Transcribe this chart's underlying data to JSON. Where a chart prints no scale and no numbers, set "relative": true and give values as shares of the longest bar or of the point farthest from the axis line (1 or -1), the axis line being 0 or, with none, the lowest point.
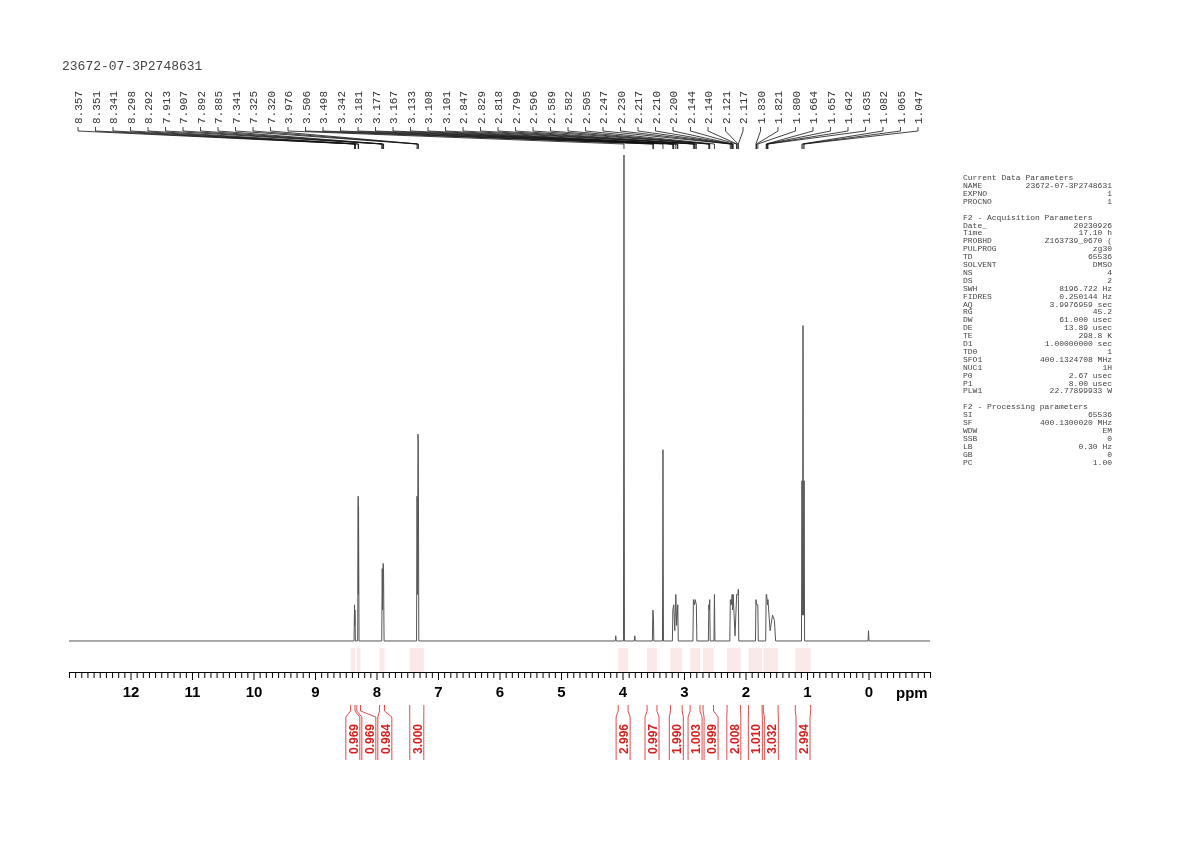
{
  "chart_data": {
    "type": "line",
    "relative": true,
    "title": "23672-07-3P2748631",
    "xlabel": "ppm",
    "xlim": [
      13,
      -1
    ],
    "color": "#555555",
    "line_style": "solid",
    "marker": "none",
    "xticks": [
      {
        "value": 13,
        "label": null
      },
      {
        "value": 12.9,
        "label": null
      },
      {
        "value": 12.8,
        "label": null
      },
      {
        "value": 12.7,
        "label": null
      },
      {
        "value": 12.6,
        "label": null
      },
      {
        "value": 12.5,
        "label": null
      },
      {
        "value": 12.4,
        "label": null
      },
      {
        "value": 12.3,
        "label": null
      },
      {
        "value": 12.2,
        "label": null
      },
      {
        "value": 12.1,
        "label": null
      },
      12,
      {
        "value": 11.9,
        "label": null
      },
      {
        "value": 11.8,
        "label": null
      },
      {
        "value": 11.7,
        "label": null
      },
      {
        "value": 11.6,
        "label": null
      },
      {
        "value": 11.5,
        "label": null
      },
      {
        "value": 11.4,
        "label": null
      },
      {
        "value": 11.3,
        "label": null
      },
      {
        "value": 11.2,
        "label": null
      },
      {
        "value": 11.1,
        "label": null
      },
      11,
      {
        "value": 10.9,
        "label": null
      },
      {
        "value": 10.8,
        "label": null
      },
      {
        "value": 10.7,
        "label": null
      },
      {
        "value": 10.6,
        "label": null
      },
      {
        "value": 10.5,
        "label": null
      },
      {
        "value": 10.4,
        "label": null
      },
      {
        "value": 10.3,
        "label": null
      },
      {
        "value": 10.2,
        "label": null
      },
      {
        "value": 10.1,
        "label": null
      },
      10,
      {
        "value": 9.9,
        "label": null
      },
      {
        "value": 9.8,
        "label": null
      },
      {
        "value": 9.7,
        "label": null
      },
      {
        "value": 9.6,
        "label": null
      },
      {
        "value": 9.5,
        "label": null
      },
      {
        "value": 9.4,
        "label": null
      },
      {
        "value": 9.3,
        "label": null
      },
      {
        "value": 9.2,
        "label": null
      },
      {
        "value": 9.1,
        "label": null
      },
      9,
      {
        "value": 8.9,
        "label": null
      },
      {
        "value": 8.8,
        "label": null
      },
      {
        "value": 8.7,
        "label": null
      },
      {
        "value": 8.6,
        "label": null
      },
      {
        "value": 8.5,
        "label": null
      },
      {
        "value": 8.4,
        "label": null
      },
      {
        "value": 8.3,
        "label": null
      },
      {
        "value": 8.2,
        "label": null
      },
      {
        "value": 8.1,
        "label": null
      },
      8,
      {
        "value": 7.9,
        "label": null
      },
      {
        "value": 7.8,
        "label": null
      },
      {
        "value": 7.7,
        "label": null
      },
      {
        "value": 7.6,
        "label": null
      },
      {
        "value": 7.5,
        "label": null
      },
      {
        "value": 7.4,
        "label": null
      },
      {
        "value": 7.3,
        "label": null
      },
      {
        "value": 7.2,
        "label": null
      },
      {
        "value": 7.1,
        "label": null
      },
      7,
      {
        "value": 6.9,
        "label": null
      },
      {
        "value": 6.8,
        "label": null
      },
      {
        "value": 6.7,
        "label": null
      },
      {
        "value": 6.6,
        "label": null
      },
      {
        "value": 6.5,
        "label": null
      },
      {
        "value": 6.4,
        "label": null
      },
      {
        "value": 6.3,
        "label": null
      },
      {
        "value": 6.2,
        "label": null
      },
      {
        "value": 6.1,
        "label": null
      },
      6,
      {
        "value": 5.9,
        "label": null
      },
      {
        "value": 5.8,
        "label": null
      },
      {
        "value": 5.7,
        "label": null
      },
      {
        "value": 5.6,
        "label": null
      },
      {
        "value": 5.5,
        "label": null
      },
      {
        "value": 5.4,
        "label": null
      },
      {
        "value": 5.3,
        "label": null
      },
      {
        "value": 5.2,
        "label": null
      },
      {
        "value": 5.1,
        "label": null
      },
      5,
      {
        "value": 4.9,
        "label": null
      },
      {
        "value": 4.8,
        "label": null
      },
      {
        "value": 4.7,
        "label": null
      },
      {
        "value": 4.6,
        "label": null
      },
      {
        "value": 4.5,
        "label": null
      },
      {
        "value": 4.4,
        "label": null
      },
      {
        "value": 4.3,
        "label": null
      },
      {
        "value": 4.2,
        "label": null
      },
      {
        "value": 4.1,
        "label": null
      },
      4,
      {
        "value": 3.9,
        "label": null
      },
      {
        "value": 3.8,
        "label": null
      },
      {
        "value": 3.7,
        "label": null
      },
      {
        "value": 3.6,
        "label": null
      },
      {
        "value": 3.5,
        "label": null
      },
      {
        "value": 3.4,
        "label": null
      },
      {
        "value": 3.3,
        "label": null
      },
      {
        "value": 3.2,
        "label": null
      },
      {
        "value": 3.1,
        "label": null
      },
      3,
      {
        "value": 2.9,
        "label": null
      },
      {
        "value": 2.8,
        "label": null
      },
      {
        "value": 2.7,
        "label": null
      },
      {
        "value": 2.6,
        "label": null
      },
      {
        "value": 2.5,
        "label": null
      },
      {
        "value": 2.4,
        "label": null
      },
      {
        "value": 2.3,
        "label": null
      },
      {
        "value": 2.2,
        "label": null
      },
      {
        "value": 2.1,
        "label": null
      },
      2,
      {
        "value": 1.9,
        "label": null
      },
      {
        "value": 1.8,
        "label": null
      },
      {
        "value": 1.7,
        "label": null
      },
      {
        "value": 1.6,
        "label": null
      },
      {
        "value": 1.5,
        "label": null
      },
      {
        "value": 1.4,
        "label": null
      },
      {
        "value": 1.3,
        "label": null
      },
      {
        "value": 1.2,
        "label": null
      },
      {
        "value": 1.1,
        "label": null
      },
      1,
      {
        "value": 0.9,
        "label": null
      },
      {
        "value": 0.8,
        "label": null
      },
      {
        "value": 0.7,
        "label": null
      },
      {
        "value": 0.6,
        "label": null
      },
      {
        "value": 0.5,
        "label": null
      },
      {
        "value": 0.4,
        "label": null
      },
      {
        "value": 0.3,
        "label": null
      },
      {
        "value": 0.2,
        "label": null
      },
      {
        "value": 0.1,
        "label": null
      },
      0,
      {
        "value": -0.1,
        "label": null
      },
      {
        "value": -0.2,
        "label": null
      },
      {
        "value": -0.3,
        "label": null
      },
      {
        "value": -0.4,
        "label": null
      },
      {
        "value": -0.5,
        "label": null
      },
      {
        "value": -0.6,
        "label": null
      },
      {
        "value": -0.7,
        "label": null
      },
      {
        "value": -0.8,
        "label": null
      },
      {
        "value": -0.9,
        "label": null
      },
      {
        "value": -1,
        "label": null
      }
    ],
    "x": [
      13,
      8.365,
      8.357,
      8.354,
      8.351,
      8.343,
      8.306,
      8.298,
      8.295,
      8.292,
      8.284,
      7.915,
      7.907,
      7.9,
      7.892,
      7.885,
      7.877,
      7.349,
      7.341,
      7.333,
      7.325,
      7.32,
      7.312,
      4.118,
      4.11,
      4.102,
      3.984,
      3.976,
      3.968,
      3.808,
      3.8,
      3.792,
      3.514,
      3.506,
      3.498,
      3.49,
      3.35,
      3.342,
      3.334,
      3.189,
      3.181,
      3.167,
      3.15,
      3.133,
      3.12,
      3.101,
      3.093,
      2.855,
      2.847,
      2.829,
      2.818,
      2.799,
      2.791,
      2.604,
      2.596,
      2.589,
      2.582,
      2.574,
      2.513,
      2.505,
      2.497,
      2.255,
      2.247,
      2.23,
      2.217,
      2.21,
      2.2,
      2.17,
      2.144,
      2.14,
      2.121,
      2.117,
      2.109,
      1.838,
      1.83,
      1.821,
      1.8,
      1.792,
      1.672,
      1.664,
      1.657,
      1.642,
      1.635,
      1.6,
      1.56,
      1.53,
      1.51,
      1.09,
      1.082,
      1.073,
      1.065,
      1.056,
      1.047,
      1.039,
      0.008,
      0,
      -0.008,
      -1
    ],
    "values": [
      0.06,
      0.06,
      0.13,
      0.09,
      0.12,
      0.06,
      0.06,
      0.34,
      0.15,
      0.32,
      0.06,
      0.06,
      0.2,
      0.12,
      0.21,
      0.19,
      0.06,
      0.06,
      0.34,
      0.15,
      0.46,
      0.44,
      0.06,
      0.06,
      0.07,
      0.06,
      0.06,
      1,
      0.06,
      0.06,
      0.07,
      0.06,
      0.06,
      0.12,
      0.11,
      0.06,
      0.06,
      0.43,
      0.06,
      0.06,
      0.12,
      0.13,
      0.08,
      0.15,
      0.09,
      0.13,
      0.06,
      0.06,
      0.14,
      0.13,
      0.14,
      0.13,
      0.06,
      0.06,
      0.13,
      0.12,
      0.14,
      0.06,
      0.06,
      0.15,
      0.06,
      0.06,
      0.14,
      0.13,
      0.15,
      0.12,
      0.15,
      0.07,
      0.15,
      0.15,
      0.15,
      0.16,
      0.06,
      0.06,
      0.14,
      0.13,
      0.13,
      0.06,
      0.06,
      0.15,
      0.15,
      0.13,
      0.14,
      0.08,
      0.11,
      0.1,
      0.06,
      0.06,
      0.37,
      0.11,
      0.67,
      0.11,
      0.37,
      0.06,
      0.06,
      0.08,
      0.06,
      0.06
    ],
    "bands": [
      {
        "axis": "x",
        "from": 8.42,
        "to": 8.35,
        "label": "0.969",
        "color": "#d42020"
      },
      {
        "axis": "x",
        "from": 8.32,
        "to": 8.26,
        "label": "0.969",
        "color": "#d42020"
      },
      {
        "axis": "x",
        "from": 7.95,
        "to": 7.87,
        "label": "0.984",
        "color": "#d42020"
      },
      {
        "axis": "x",
        "from": 7.46,
        "to": 7.23,
        "label": "3.000",
        "color": "#d42020"
      },
      {
        "axis": "x",
        "from": 4.07,
        "to": 3.91,
        "label": "2.996",
        "color": "#d42020"
      },
      {
        "axis": "x",
        "from": 3.6,
        "to": 3.44,
        "label": "0.997",
        "color": "#d42020"
      },
      {
        "axis": "x",
        "from": 3.22,
        "to": 3.03,
        "label": "1.990",
        "color": "#d42020"
      },
      {
        "axis": "x",
        "from": 2.9,
        "to": 2.74,
        "label": "1.003",
        "color": "#d42020"
      },
      {
        "axis": "x",
        "from": 2.69,
        "to": 2.52,
        "label": "0.999",
        "color": "#d42020"
      },
      {
        "axis": "x",
        "from": 2.3,
        "to": 2.08,
        "label": "2.008",
        "color": "#d42020"
      },
      {
        "axis": "x",
        "from": 1.95,
        "to": 1.73,
        "label": "1.010",
        "color": "#d42020"
      },
      {
        "axis": "x",
        "from": 1.71,
        "to": 1.47,
        "label": "3.032",
        "color": "#d42020"
      },
      {
        "axis": "x",
        "from": 1.19,
        "to": 0.94,
        "label": "2.994",
        "color": "#d42020"
      }
    ],
    "annotations": [
      "Current Data Parameters",
      "NAME  23672-07-3P2748631",
      "EXPNO  1",
      "PROCNO  1",
      "F2 - Acquisition Parameters",
      "Date_  20230926",
      "Time  17.10 h",
      "PROBHD  Z163739_0670 (",
      "PULPROG  zg30",
      "TD  65536",
      "SOLVENT  DMSO",
      "NS  4",
      "DS  2",
      "SWH  8196.722 Hz",
      "FIDRES  0.250144 Hz",
      "AQ  3.9976959 sec",
      "RG  45.2",
      "DW  61.000 usec",
      "DE  13.89 usec",
      "TE  298.8 K",
      "D1  1.00000000 sec",
      "TD0  1",
      "SFO1  400.1324708 MHz",
      "NUC1  1H",
      "P0  2.67 usec",
      "P1  8.00 usec",
      "PLW1  22.77899933 W",
      "F2 - Processing parameters",
      "SI  65536",
      "SF  400.1300020 MHz",
      "WDW  EM",
      "SSB  0",
      "LB  0.30 Hz",
      "GB  0",
      "PC  1.00",
      {
        "text": "8.357",
        "x": 8.357
      },
      {
        "text": "8.351",
        "x": 8.351
      },
      {
        "text": "8.341",
        "x": 8.341
      },
      {
        "text": "8.298",
        "x": 8.298
      },
      {
        "text": "8.292",
        "x": 8.292
      },
      {
        "text": "7.913",
        "x": 7.913
      },
      {
        "text": "7.907",
        "x": 7.907
      },
      {
        "text": "7.892",
        "x": 7.892
      },
      {
        "text": "7.885",
        "x": 7.885
      },
      {
        "text": "7.341",
        "x": 7.341
      },
      {
        "text": "7.325",
        "x": 7.325
      },
      {
        "text": "7.320",
        "x": 7.32
      },
      {
        "text": "3.976",
        "x": 3.976
      },
      {
        "text": "3.506",
        "x": 3.506
      },
      {
        "text": "3.498",
        "x": 3.498
      },
      {
        "text": "3.342",
        "x": 3.342
      },
      {
        "text": "3.181",
        "x": 3.181
      },
      {
        "text": "3.177",
        "x": 3.177
      },
      {
        "text": "3.167",
        "x": 3.167
      },
      {
        "text": "3.133",
        "x": 3.133
      },
      {
        "text": "3.108",
        "x": 3.108
      },
      {
        "text": "3.101",
        "x": 3.101
      },
      {
        "text": "2.847",
        "x": 2.847
      },
      {
        "text": "2.829",
        "x": 2.829
      },
      {
        "text": "2.818",
        "x": 2.818
      },
      {
        "text": "2.799",
        "x": 2.799
      },
      {
        "text": "2.596",
        "x": 2.596
      },
      {
        "text": "2.589",
        "x": 2.589
      },
      {
        "text": "2.582",
        "x": 2.582
      },
      {
        "text": "2.505",
        "x": 2.505
      },
      {
        "text": "2.247",
        "x": 2.247
      },
      {
        "text": "2.230",
        "x": 2.23
      },
      {
        "text": "2.217",
        "x": 2.217
      },
      {
        "text": "2.210",
        "x": 2.21
      },
      {
        "text": "2.200",
        "x": 2.2
      },
      {
        "text": "2.144",
        "x": 2.144
      },
      {
        "text": "2.140",
        "x": 2.14
      },
      {
        "text": "2.121",
        "x": 2.121
      },
      {
        "text": "2.117",
        "x": 2.117
      },
      {
        "text": "1.830",
        "x": 1.83
      },
      {
        "text": "1.821",
        "x": 1.821
      },
      {
        "text": "1.800",
        "x": 1.8
      },
      {
        "text": "1.664",
        "x": 1.664
      },
      {
        "text": "1.657",
        "x": 1.657
      },
      {
        "text": "1.642",
        "x": 1.642
      },
      {
        "text": "1.635",
        "x": 1.635
      },
      {
        "text": "1.082",
        "x": 1.082
      },
      {
        "text": "1.065",
        "x": 1.065
      },
      {
        "text": "1.047",
        "x": 1.047
      }
    ]
  }
}
